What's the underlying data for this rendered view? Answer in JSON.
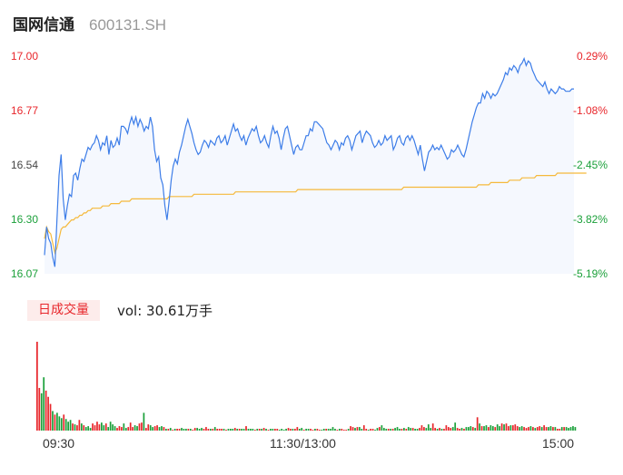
{
  "header": {
    "name": "国网信通",
    "code": "600131.SH"
  },
  "colors": {
    "up": "#e8262b",
    "down": "#1ba03a",
    "price_line": "#3d7de8",
    "avg_line": "#f5b93b",
    "area": "#f5f8fe"
  },
  "chart_data": [
    {
      "type": "line",
      "ylim": [
        16.07,
        17.0
      ],
      "y_ticks": [
        "17.00",
        "16.77",
        "16.54",
        "16.30",
        "16.07"
      ],
      "pct_ticks": [
        "0.29%",
        "-1.08%",
        "-2.45%",
        "-3.82%",
        "-5.19%"
      ],
      "x_ticks": [
        "09:30",
        "11:30/13:00",
        "15:00"
      ],
      "series": [
        {
          "values": [
            16.15,
            16.27,
            16.22,
            16.2,
            16.14,
            16.1,
            16.3,
            16.49,
            16.58,
            16.39,
            16.3,
            16.36,
            16.41,
            16.4,
            16.49,
            16.5,
            16.47,
            16.52,
            16.56,
            16.55,
            16.58,
            16.61,
            16.6,
            16.62,
            16.63,
            16.66,
            16.64,
            16.6,
            16.63,
            16.62,
            16.66,
            16.58,
            16.64,
            16.61,
            16.62,
            16.65,
            16.62,
            16.7,
            16.7,
            16.69,
            16.67,
            16.71,
            16.74,
            16.71,
            16.74,
            16.7,
            16.73,
            16.71,
            16.68,
            16.7,
            16.69,
            16.74,
            16.7,
            16.6,
            16.55,
            16.57,
            16.48,
            16.45,
            16.36,
            16.3,
            16.38,
            16.47,
            16.53,
            16.56,
            16.54,
            16.59,
            16.62,
            16.66,
            16.7,
            16.73,
            16.7,
            16.67,
            16.63,
            16.6,
            16.58,
            16.59,
            16.62,
            16.64,
            16.63,
            16.61,
            16.64,
            16.63,
            16.62,
            16.65,
            16.66,
            16.63,
            16.64,
            16.66,
            16.62,
            16.65,
            16.68,
            16.71,
            16.68,
            16.69,
            16.66,
            16.64,
            16.66,
            16.62,
            16.65,
            16.67,
            16.69,
            16.68,
            16.7,
            16.66,
            16.63,
            16.64,
            16.66,
            16.63,
            16.61,
            16.66,
            16.7,
            16.67,
            16.68,
            16.65,
            16.6,
            16.65,
            16.69,
            16.7,
            16.66,
            16.62,
            16.58,
            16.61,
            16.62,
            16.6,
            16.6,
            16.63,
            16.66,
            16.66,
            16.69,
            16.68,
            16.72,
            16.72,
            16.71,
            16.7,
            16.69,
            16.66,
            16.63,
            16.62,
            16.6,
            16.62,
            16.64,
            16.63,
            16.6,
            16.63,
            16.62,
            16.65,
            16.66,
            16.64,
            16.6,
            16.63,
            16.66,
            16.67,
            16.68,
            16.63,
            16.66,
            16.68,
            16.67,
            16.66,
            16.63,
            16.61,
            16.62,
            16.64,
            16.62,
            16.63,
            16.66,
            16.64,
            16.65,
            16.66,
            16.6,
            16.62,
            16.65,
            16.66,
            16.63,
            16.62,
            16.65,
            16.66,
            16.64,
            16.66,
            16.64,
            16.61,
            16.58,
            16.62,
            16.56,
            16.51,
            16.55,
            16.59,
            16.6,
            16.62,
            16.6,
            16.61,
            16.6,
            16.62,
            16.6,
            16.58,
            16.56,
            16.57,
            16.6,
            16.59,
            16.6,
            16.62,
            16.6,
            16.58,
            16.57,
            16.6,
            16.64,
            16.68,
            16.72,
            16.75,
            16.78,
            16.8,
            16.8,
            16.84,
            16.82,
            16.85,
            16.84,
            16.82,
            16.84,
            16.83,
            16.84,
            16.86,
            16.88,
            16.9,
            16.93,
            16.92,
            16.95,
            16.94,
            16.96,
            16.95,
            16.93,
            16.96,
            16.97,
            16.99,
            16.96,
            16.98,
            16.97,
            16.94,
            16.92,
            16.9,
            16.89,
            16.88,
            16.87,
            16.89,
            16.86,
            16.84,
            16.86,
            16.85,
            16.84,
            16.85,
            16.87,
            16.86,
            16.86,
            16.85,
            16.85,
            16.85,
            16.86,
            16.86
          ]
        },
        {
          "values": [
            16.22,
            16.27,
            16.25,
            16.24,
            16.2,
            16.16,
            16.18,
            16.22,
            16.26,
            16.27,
            16.27,
            16.28,
            16.29,
            16.3,
            16.3,
            16.31,
            16.31,
            16.32,
            16.32,
            16.33,
            16.33,
            16.34,
            16.34,
            16.35,
            16.35,
            16.35,
            16.35,
            16.35,
            16.36,
            16.36,
            16.36,
            16.36,
            16.37,
            16.37,
            16.37,
            16.37,
            16.37,
            16.38,
            16.38,
            16.38,
            16.38,
            16.38,
            16.39,
            16.39,
            16.39,
            16.39,
            16.39,
            16.39,
            16.39,
            16.39,
            16.39,
            16.39,
            16.39,
            16.39,
            16.39,
            16.39,
            16.39,
            16.39,
            16.39,
            16.39,
            16.4,
            16.4,
            16.4,
            16.4,
            16.4,
            16.4,
            16.4,
            16.4,
            16.4,
            16.4,
            16.4,
            16.4,
            16.41,
            16.41,
            16.41,
            16.41,
            16.41,
            16.41,
            16.41,
            16.41,
            16.41,
            16.41,
            16.41,
            16.41,
            16.41,
            16.41,
            16.41,
            16.41,
            16.41,
            16.41,
            16.41,
            16.41,
            16.42,
            16.42,
            16.42,
            16.42,
            16.42,
            16.42,
            16.42,
            16.42,
            16.42,
            16.42,
            16.42,
            16.42,
            16.42,
            16.42,
            16.42,
            16.42,
            16.42,
            16.42,
            16.42,
            16.42,
            16.42,
            16.42,
            16.42,
            16.42,
            16.42,
            16.42,
            16.42,
            16.42,
            16.42,
            16.42,
            16.43,
            16.43,
            16.43,
            16.43,
            16.43,
            16.43,
            16.43,
            16.43,
            16.43,
            16.43,
            16.43,
            16.43,
            16.43,
            16.43,
            16.43,
            16.43,
            16.43,
            16.43,
            16.43,
            16.43,
            16.43,
            16.43,
            16.43,
            16.43,
            16.43,
            16.43,
            16.43,
            16.43,
            16.43,
            16.43,
            16.43,
            16.43,
            16.43,
            16.43,
            16.43,
            16.43,
            16.43,
            16.43,
            16.43,
            16.43,
            16.43,
            16.43,
            16.43,
            16.43,
            16.43,
            16.43,
            16.43,
            16.43,
            16.43,
            16.43,
            16.43,
            16.44,
            16.44,
            16.44,
            16.44,
            16.44,
            16.44,
            16.44,
            16.44,
            16.44,
            16.44,
            16.44,
            16.44,
            16.44,
            16.44,
            16.44,
            16.44,
            16.44,
            16.44,
            16.44,
            16.44,
            16.44,
            16.44,
            16.44,
            16.44,
            16.44,
            16.44,
            16.44,
            16.44,
            16.44,
            16.44,
            16.44,
            16.44,
            16.44,
            16.44,
            16.44,
            16.44,
            16.45,
            16.45,
            16.45,
            16.45,
            16.45,
            16.45,
            16.46,
            16.46,
            16.46,
            16.46,
            16.46,
            16.46,
            16.46,
            16.46,
            16.46,
            16.47,
            16.47,
            16.47,
            16.47,
            16.47,
            16.47,
            16.48,
            16.48,
            16.48,
            16.48,
            16.48,
            16.48,
            16.48,
            16.49,
            16.49,
            16.49,
            16.49,
            16.49,
            16.49,
            16.49,
            16.49,
            16.49,
            16.49,
            16.5,
            16.5,
            16.5,
            16.5,
            16.5,
            16.5,
            16.5,
            16.5,
            16.5,
            16.5,
            16.5,
            16.5,
            16.5,
            16.5,
            16.5
          ]
        }
      ]
    },
    {
      "type": "bar",
      "title": "日成交量",
      "volume_label": "vol: 30.61万手",
      "values": [
        100,
        48,
        42,
        60,
        45,
        38,
        30,
        22,
        18,
        20,
        16,
        14,
        18,
        13,
        10,
        12,
        8,
        7,
        6,
        12,
        8,
        6,
        4,
        5,
        3,
        8,
        6,
        10,
        7,
        9,
        6,
        8,
        4,
        10,
        7,
        5,
        3,
        5,
        4,
        8,
        3,
        4,
        9,
        4,
        6,
        5,
        8,
        9,
        20,
        3,
        7,
        6,
        4,
        5,
        6,
        4,
        5,
        4,
        2,
        2,
        3,
        1,
        2,
        2,
        2,
        3,
        2,
        2,
        2,
        2,
        1,
        3,
        3,
        2,
        3,
        2,
        4,
        2,
        2,
        2,
        4,
        2,
        2,
        2,
        2,
        1,
        2,
        2,
        2,
        3,
        2,
        2,
        2,
        2,
        5,
        2,
        2,
        2,
        1,
        2,
        2,
        2,
        3,
        2,
        1,
        2,
        2,
        2,
        2,
        1,
        2,
        1,
        2,
        3,
        2,
        2,
        2,
        4,
        2,
        3,
        1,
        2,
        2,
        2,
        1,
        2,
        2,
        1,
        1,
        2,
        2,
        2,
        2,
        4,
        2,
        1,
        2,
        2,
        1,
        1,
        2,
        5,
        4,
        3,
        4,
        4,
        2,
        6,
        2,
        1,
        2,
        2,
        1,
        3,
        4,
        6,
        3,
        2,
        2,
        2,
        2,
        3,
        4,
        2,
        2,
        3,
        2,
        4,
        3,
        3,
        2,
        2,
        3,
        6,
        4,
        3,
        7,
        3,
        8,
        3,
        2,
        3,
        2,
        2,
        6,
        4,
        3,
        4,
        9,
        3,
        2,
        3,
        2,
        4,
        4,
        5,
        4,
        3,
        15,
        8,
        5,
        5,
        6,
        4,
        6,
        5,
        4,
        7,
        5,
        8,
        7,
        8,
        5,
        6,
        6,
        7,
        5,
        4,
        5,
        4,
        3,
        4,
        5,
        4,
        3,
        4,
        5,
        4,
        6,
        4,
        4,
        5,
        4,
        4,
        2,
        2,
        4,
        4,
        4,
        3,
        4,
        5,
        4
      ],
      "directions": [
        "u",
        "u",
        "d",
        "d",
        "u",
        "u",
        "u",
        "d",
        "u",
        "d",
        "d",
        "d",
        "u",
        "d",
        "d",
        "d",
        "u",
        "d",
        "u",
        "u",
        "d",
        "u",
        "d",
        "d",
        "d",
        "u",
        "u",
        "u",
        "u",
        "d",
        "d",
        "u",
        "d",
        "d",
        "d",
        "d",
        "u",
        "u",
        "u",
        "d",
        "d",
        "u",
        "u",
        "u",
        "d",
        "d",
        "u",
        "u",
        "d",
        "u",
        "u",
        "d",
        "d",
        "u",
        "u",
        "d",
        "d",
        "u",
        "d",
        "u",
        "d",
        "u",
        "d",
        "u",
        "u",
        "d",
        "d",
        "d",
        "u",
        "d",
        "u",
        "u",
        "d",
        "d",
        "d",
        "u",
        "u",
        "u",
        "d",
        "u",
        "d",
        "u",
        "u",
        "u",
        "d",
        "u",
        "d",
        "d",
        "d",
        "u",
        "d",
        "u",
        "d",
        "d",
        "u",
        "d",
        "d",
        "d",
        "u",
        "d",
        "u",
        "d",
        "u",
        "d",
        "u",
        "d",
        "d",
        "u",
        "u",
        "d",
        "d",
        "d",
        "d",
        "u",
        "u",
        "d",
        "u",
        "u",
        "d",
        "d",
        "u",
        "d",
        "d",
        "u",
        "u",
        "d",
        "u",
        "u",
        "d",
        "d",
        "u",
        "d",
        "d",
        "d",
        "d",
        "u",
        "d",
        "u",
        "u",
        "u",
        "d",
        "u",
        "u",
        "d",
        "u",
        "d",
        "d",
        "u",
        "u",
        "d",
        "u",
        "u",
        "d",
        "d",
        "u",
        "d",
        "d",
        "d",
        "u",
        "d",
        "u",
        "d",
        "d",
        "d",
        "u",
        "d",
        "u",
        "d",
        "d",
        "u",
        "d",
        "d",
        "u",
        "u",
        "u",
        "d",
        "d",
        "d",
        "u",
        "u",
        "d",
        "u",
        "d",
        "u",
        "u",
        "u",
        "u",
        "d",
        "d",
        "u",
        "u",
        "d",
        "u",
        "d",
        "d",
        "d",
        "u",
        "d",
        "u",
        "d",
        "u",
        "d",
        "d",
        "u",
        "d",
        "d",
        "u",
        "d",
        "d",
        "u",
        "d",
        "u",
        "u",
        "d",
        "u",
        "u",
        "u",
        "d",
        "d",
        "u",
        "u",
        "u",
        "d",
        "u",
        "d",
        "u",
        "u",
        "d",
        "u",
        "u",
        "d",
        "d",
        "u",
        "d",
        "u",
        "u",
        "d",
        "u",
        "d"
      ]
    }
  ]
}
